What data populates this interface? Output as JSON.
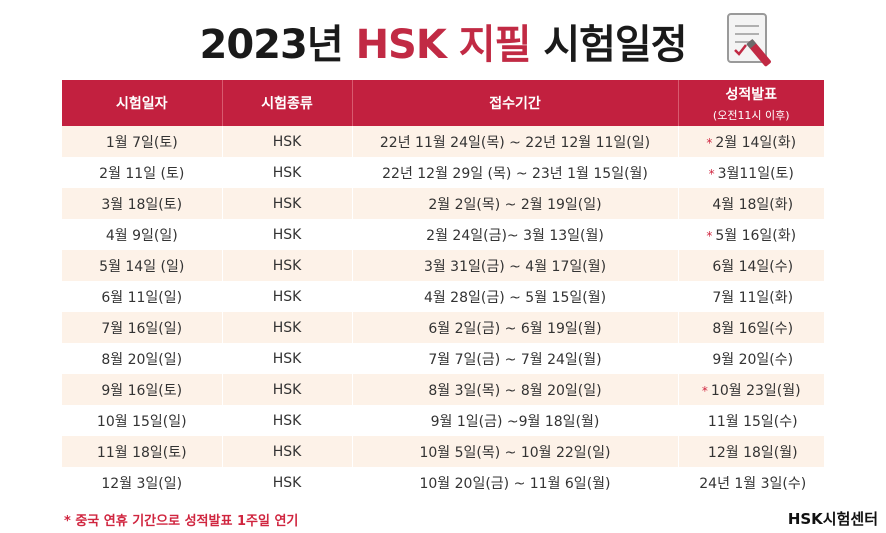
{
  "title": {
    "year": "2023년",
    "accent": "HSK 지필",
    "rest": "시험일정"
  },
  "headers": {
    "date": "시험일자",
    "type": "시험종류",
    "period": "접수기간",
    "result": "성적발표",
    "result_sub": "(오전11시 이후)"
  },
  "rows": [
    {
      "date": "1월 7일(토)",
      "type": "HSK",
      "period": "22년 11월 24일(목) ~ 22년 12월 11일(일)",
      "result": "2월 14일(화)",
      "star": "*"
    },
    {
      "date": "2월 11일 (토)",
      "type": "HSK",
      "period": "22년 12월 29일 (목) ~ 23년 1월 15일(월)",
      "result": "3월11일(토)",
      "star": "*"
    },
    {
      "date": "3월 18일(토)",
      "type": "HSK",
      "period": "2월 2일(목) ~ 2월 19일(일)",
      "result": "4월 18일(화)",
      "star": ""
    },
    {
      "date": "4월 9일(일)",
      "type": "HSK",
      "period": "2월 24일(금)~ 3월 13일(월)",
      "result": "5월 16일(화)",
      "star": "*"
    },
    {
      "date": "5월 14일 (일)",
      "type": "HSK",
      "period": "3월 31일(금) ~ 4월 17일(월)",
      "result": "6월 14일(수)",
      "star": ""
    },
    {
      "date": "6월 11일(일)",
      "type": "HSK",
      "period": "4월 28일(금) ~ 5월 15일(월)",
      "result": "7월 11일(화)",
      "star": ""
    },
    {
      "date": "7월 16일(일)",
      "type": "HSK",
      "period": "6월 2일(금) ~ 6월 19일(월)",
      "result": "8월 16일(수)",
      "star": ""
    },
    {
      "date": "8월 20일(일)",
      "type": "HSK",
      "period": "7월 7일(금) ~ 7월 24일(월)",
      "result": "9월 20일(수)",
      "star": ""
    },
    {
      "date": "9월 16일(토)",
      "type": "HSK",
      "period": "8월 3일(목) ~ 8월 20일(일)",
      "result": "10월 23일(월)",
      "star": "*"
    },
    {
      "date": "10월 15일(일)",
      "type": "HSK",
      "period": "9월 1일(금) ~9월 18일(월)",
      "result": "11월 15일(수)",
      "star": ""
    },
    {
      "date": "11월 18일(토)",
      "type": "HSK",
      "period": "10월 5일(목) ~ 10월 22일(일)",
      "result": "12월 18일(월)",
      "star": ""
    },
    {
      "date": "12월 3일(일)",
      "type": "HSK",
      "period": "10월 20일(금) ~ 11월 6일(월)",
      "result": "24년 1월 3일(수)",
      "star": ""
    }
  ],
  "footnote": "* 중국 연휴 기간으로 성적발표 1주일 연기",
  "brand": "HSK시험센터",
  "colors": {
    "accent": "#c12a44",
    "header_bg": "#c2203f",
    "row_alt": "#fdf2e8",
    "star": "#d0253f"
  },
  "icons": {
    "title_decoration": "document-pen-icon"
  }
}
